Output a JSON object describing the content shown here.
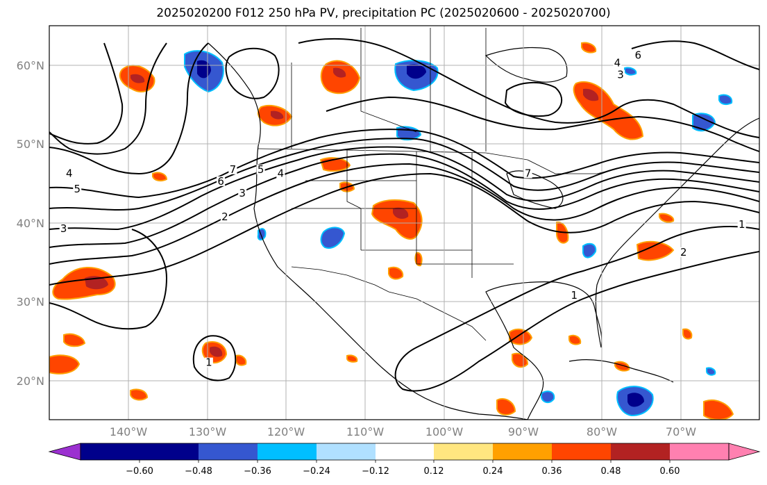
{
  "title": "2025020200 F012 250 hPa PV, precipitation PC (2025020600 - 2025020700)",
  "map": {
    "lat_labels": [
      "60°N",
      "50°N",
      "40°N",
      "30°N",
      "20°N"
    ],
    "lon_labels": [
      "140°W",
      "130°W",
      "120°W",
      "110°W",
      "100°W",
      "90°W",
      "80°W",
      "70°W"
    ],
    "extent": {
      "lon_min": -150,
      "lon_max": -61,
      "lat_min": 15,
      "lat_max": 65
    },
    "contour_levels": [
      "1",
      "2",
      "3",
      "4",
      "5",
      "6",
      "7"
    ],
    "contour_labels": [
      {
        "text": "1",
        "lon": -130.0,
        "lat": 22.0
      },
      {
        "text": "1",
        "lon": -84.2,
        "lat": 30.5
      },
      {
        "text": "1",
        "lon": -63.2,
        "lat": 39.5
      },
      {
        "text": "2",
        "lon": -128.0,
        "lat": 40.5
      },
      {
        "text": "2",
        "lon": -70.5,
        "lat": 36.0
      },
      {
        "text": "3",
        "lon": -148.2,
        "lat": 39.0
      },
      {
        "text": "3",
        "lon": -125.8,
        "lat": 43.5
      },
      {
        "text": "3",
        "lon": -78.4,
        "lat": 58.5
      },
      {
        "text": "4",
        "lon": -147.5,
        "lat": 46.0
      },
      {
        "text": "4",
        "lon": -121.0,
        "lat": 46.0
      },
      {
        "text": "4",
        "lon": -78.8,
        "lat": 60.0
      },
      {
        "text": "5",
        "lon": -146.5,
        "lat": 44.0
      },
      {
        "text": "5",
        "lon": -123.5,
        "lat": 46.5
      },
      {
        "text": "6",
        "lon": -128.5,
        "lat": 45.0
      },
      {
        "text": "6",
        "lon": -76.2,
        "lat": 61.0
      },
      {
        "text": "7",
        "lon": -127.0,
        "lat": 46.5
      },
      {
        "text": "7",
        "lon": -90.0,
        "lat": 46.0
      }
    ]
  },
  "colorbar": {
    "ticks": [
      "−0.60",
      "−0.48",
      "−0.36",
      "−0.24",
      "−0.12",
      "0.12",
      "0.24",
      "0.36",
      "0.48",
      "0.60"
    ],
    "colors": [
      "#9b30d0",
      "#00008b",
      "#3557d0",
      "#00bfff",
      "#b0e0ff",
      "#ffffff",
      "#ffe680",
      "#ffa000",
      "#ff4500",
      "#b22222",
      "#ff80b0"
    ]
  },
  "colors": {
    "strong_positive": "#ff4500",
    "very_strong_positive": "#b22222",
    "positive_edge": "#ffa000",
    "negative": "#3557d0",
    "strong_negative": "#00008b",
    "light_negative": "#00bfff"
  }
}
